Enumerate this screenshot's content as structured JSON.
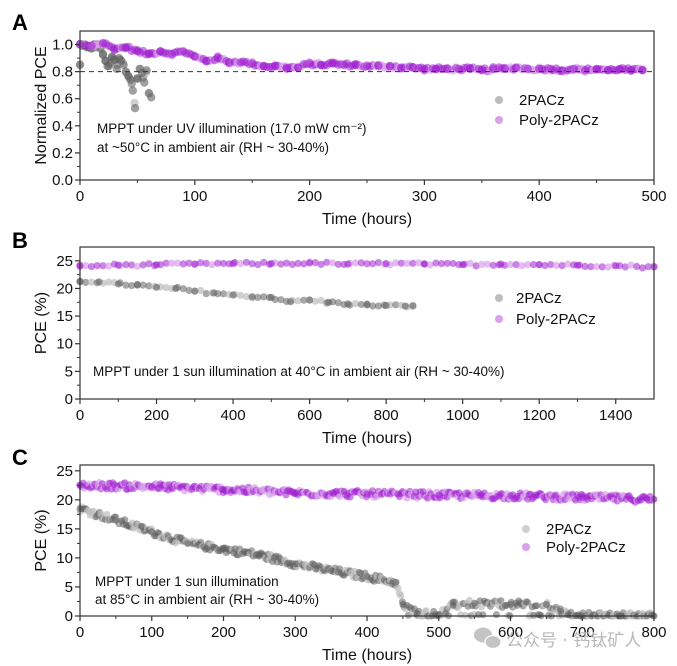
{
  "watermark": {
    "icon": "wechat-icon",
    "text": "公众号 · 钙钛矿人"
  },
  "colors": {
    "twoPACz": "#606060",
    "twoPACz_light": "#bdbdbd",
    "poly": "#a020d0",
    "poly_light": "#d9a0ec",
    "axis": "#333333",
    "ref_line": "#333333"
  },
  "chart_data": [
    {
      "panel": "A",
      "type": "scatter",
      "xlabel": "Time (hours)",
      "ylabel": "Normalized PCE",
      "xlim": [
        0,
        500
      ],
      "ylim": [
        0,
        1.1
      ],
      "xticks": [
        0,
        100,
        200,
        300,
        400,
        500
      ],
      "xtick_labels": [
        "0",
        "100",
        "200",
        "300",
        "400",
        "500"
      ],
      "yticks": [
        0.0,
        0.2,
        0.4,
        0.6,
        0.8,
        1.0
      ],
      "ytick_labels": [
        "0.0",
        "0.2",
        "0.4",
        "0.6",
        "0.8",
        "1.0"
      ],
      "reference_line": {
        "y": 0.8,
        "style": "dashed"
      },
      "annotation": [
        "MPPT under  UV illumination (17.0 mW cm⁻²)",
        "at ~50°C in ambient air (RH ~ 30-40%)"
      ],
      "legend": {
        "position": "right-middle",
        "entries": [
          "2PACz",
          "Poly-2PACz"
        ]
      },
      "series": [
        {
          "name": "2PACz",
          "x": [
            0,
            2,
            4,
            6,
            8,
            10,
            12,
            14,
            16,
            18,
            20,
            22,
            24,
            26,
            28,
            30,
            32,
            34,
            36,
            38,
            40,
            42,
            44,
            46,
            48,
            50,
            52,
            54,
            56,
            58,
            60,
            62
          ],
          "y": [
            0.85,
            0.99,
            1.0,
            0.98,
            0.99,
            0.97,
            1.0,
            0.98,
            1.0,
            0.97,
            0.93,
            0.88,
            0.84,
            0.86,
            0.91,
            0.89,
            0.82,
            0.9,
            0.88,
            0.85,
            0.8,
            0.77,
            0.74,
            0.66,
            0.53,
            0.75,
            0.82,
            0.79,
            0.72,
            0.81,
            0.64,
            0.61
          ]
        },
        {
          "name": "Poly-2PACz",
          "x": [
            0,
            10,
            20,
            30,
            40,
            50,
            60,
            70,
            80,
            90,
            100,
            110,
            120,
            130,
            140,
            150,
            160,
            170,
            180,
            190,
            200,
            210,
            220,
            230,
            240,
            250,
            260,
            270,
            280,
            290,
            300,
            310,
            320,
            330,
            340,
            350,
            360,
            370,
            380,
            390,
            400,
            410,
            420,
            430,
            440,
            450,
            460,
            470,
            480,
            490
          ],
          "y": [
            1.0,
            0.99,
            1.01,
            0.97,
            0.98,
            0.95,
            0.93,
            0.95,
            0.93,
            0.95,
            0.91,
            0.88,
            0.9,
            0.87,
            0.87,
            0.86,
            0.84,
            0.84,
            0.83,
            0.83,
            0.86,
            0.85,
            0.86,
            0.85,
            0.85,
            0.84,
            0.84,
            0.84,
            0.83,
            0.83,
            0.82,
            0.82,
            0.82,
            0.82,
            0.82,
            0.81,
            0.82,
            0.82,
            0.83,
            0.82,
            0.82,
            0.82,
            0.81,
            0.82,
            0.81,
            0.82,
            0.81,
            0.82,
            0.81,
            0.81
          ]
        }
      ]
    },
    {
      "panel": "B",
      "type": "scatter",
      "xlabel": "Time (hours)",
      "ylabel": "PCE (%)",
      "xlim": [
        0,
        1500
      ],
      "ylim": [
        0,
        27.5
      ],
      "xticks": [
        0,
        200,
        400,
        600,
        800,
        1000,
        1200,
        1400
      ],
      "xtick_labels": [
        "0",
        "200",
        "400",
        "600",
        "800",
        "1000",
        "1200",
        "1400"
      ],
      "yticks": [
        0,
        5,
        10,
        15,
        20,
        25
      ],
      "ytick_labels": [
        "0",
        "5",
        "10",
        "15",
        "20",
        "25"
      ],
      "annotation": [
        "MPPT under 1 sun illumination at 40°C in ambient air (RH ~ 30-40%)"
      ],
      "legend": {
        "position": "right-middle",
        "entries": [
          "2PACz",
          "Poly-2PACz"
        ]
      },
      "series": [
        {
          "name": "2PACz",
          "x": [
            0,
            50,
            100,
            150,
            200,
            250,
            300,
            350,
            400,
            450,
            500,
            550,
            600,
            650,
            700,
            750,
            800,
            850,
            870
          ],
          "y": [
            21.3,
            21.2,
            20.8,
            20.6,
            20.2,
            20.0,
            19.5,
            19.2,
            18.8,
            18.5,
            18.4,
            17.6,
            17.9,
            17.5,
            17.2,
            17.0,
            16.9,
            16.8,
            16.9
          ]
        },
        {
          "name": "Poly-2PACz",
          "x": [
            0,
            100,
            200,
            300,
            400,
            500,
            600,
            700,
            800,
            900,
            1000,
            1100,
            1200,
            1300,
            1400,
            1500
          ],
          "y": [
            24.0,
            24.2,
            24.3,
            24.4,
            24.5,
            24.5,
            24.6,
            24.4,
            24.5,
            24.4,
            24.3,
            24.4,
            24.3,
            24.2,
            24.1,
            23.9
          ]
        }
      ]
    },
    {
      "panel": "C",
      "type": "scatter",
      "xlabel": "Time (hours)",
      "ylabel": "PCE (%)",
      "xlim": [
        0,
        800
      ],
      "ylim": [
        0,
        26
      ],
      "xticks": [
        0,
        100,
        200,
        300,
        400,
        500,
        600,
        700,
        800
      ],
      "xtick_labels": [
        "0",
        "100",
        "200",
        "300",
        "400",
        "500",
        "600",
        "700",
        "800"
      ],
      "yticks": [
        0,
        5,
        10,
        15,
        20,
        25
      ],
      "ytick_labels": [
        "0",
        "5",
        "10",
        "15",
        "20",
        "25"
      ],
      "annotation": [
        "MPPT under 1 sun illumination",
        "at 85°C in ambient air (RH ~ 30-40%)"
      ],
      "legend": {
        "position": "right-middle",
        "entries": [
          "2PACz",
          "Poly-2PACz"
        ]
      },
      "series": [
        {
          "name": "2PACz",
          "x": [
            0,
            50,
            100,
            150,
            200,
            250,
            300,
            350,
            400,
            440,
            450,
            470,
            500,
            520,
            550,
            600,
            650,
            670,
            680,
            700,
            800
          ],
          "y": [
            18.5,
            16.5,
            14.5,
            12.5,
            11.5,
            10.5,
            9.0,
            7.8,
            6.8,
            5.8,
            2.0,
            0.5,
            0.3,
            1.8,
            2.2,
            2.0,
            2.0,
            0.8,
            0.2,
            0.0,
            0.0
          ]
        },
        {
          "name": "Poly-2PACz",
          "x": [
            0,
            100,
            200,
            300,
            400,
            500,
            600,
            700,
            800
          ],
          "y": [
            22.5,
            22.3,
            21.8,
            21.2,
            21.0,
            20.8,
            20.7,
            20.4,
            20.1
          ]
        }
      ]
    }
  ]
}
